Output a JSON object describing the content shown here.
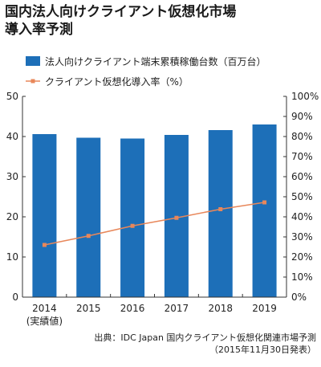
{
  "title_lines": [
    "国内法人向けクライアント仮想化市場",
    "導入率予測"
  ],
  "source_lines": [
    "出典：IDC Japan 国内クライアント仮想化関連市場予測",
    "（2015年11月30日発表）"
  ],
  "colors": {
    "bar": "#1d6fb8",
    "line": "#e8875a",
    "axis": "#333333"
  },
  "chart_data": {
    "type": "bar+line",
    "categories": [
      "2014",
      "2015",
      "2016",
      "2017",
      "2018",
      "2019"
    ],
    "category_sublabels": [
      "(実績値)",
      "",
      "",
      "",
      "",
      ""
    ],
    "series": [
      {
        "name": "法人向けクライアント端末累積稼働台数（百万台）",
        "type": "bar",
        "axis": "left",
        "values": [
          40.6,
          39.7,
          39.5,
          40.4,
          41.6,
          43.0
        ]
      },
      {
        "name": "クライアント仮想化導入率（%）",
        "type": "line",
        "axis": "right",
        "values": [
          26.0,
          30.5,
          35.5,
          39.5,
          43.8,
          47.2
        ]
      }
    ],
    "y_left": {
      "ylim": [
        0,
        50
      ],
      "ticks": [
        0,
        10,
        20,
        30,
        40,
        50
      ]
    },
    "y_right": {
      "ylim": [
        0,
        100
      ],
      "ticks": [
        "0%",
        "10%",
        "20%",
        "30%",
        "40%",
        "50%",
        "60%",
        "70%",
        "80%",
        "90%",
        "100%"
      ]
    },
    "legend_position": "top",
    "grid": false
  }
}
